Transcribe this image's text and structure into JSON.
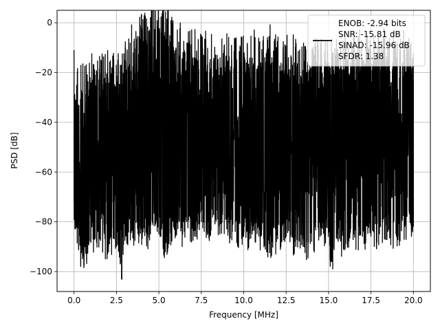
{
  "chart_data": {
    "type": "line",
    "title": "",
    "xlabel": "Frequency [MHz]",
    "ylabel": "PSD [dB]",
    "xlim": [
      -1.0,
      21.0
    ],
    "ylim": [
      -108,
      5
    ],
    "xticks": [
      0.0,
      2.5,
      5.0,
      7.5,
      10.0,
      12.5,
      15.0,
      17.5,
      20.0
    ],
    "xtick_labels": [
      "0.0",
      "2.5",
      "5.0",
      "7.5",
      "10.0",
      "12.5",
      "15.0",
      "17.5",
      "20.0"
    ],
    "yticks": [
      0,
      -20,
      -40,
      -60,
      -80,
      -100
    ],
    "ytick_labels": [
      "0",
      "−20",
      "−40",
      "−60",
      "−80",
      "−100"
    ],
    "grid": true,
    "legend_position": "top-right",
    "legend_entries": [
      "ENOB: -2.94 bits",
      "SNR: -15.81 dB",
      "SINAD: -15.96 dB",
      "SFDR: 1.38"
    ],
    "series_color": "#000000",
    "envelope_notes": "Dense noise-like PSD from 0 to 20 MHz; lower envelope mostly -95 to -75 dB, upper envelope -35 to -15 dB with peaks near 0 dB around 5 MHz",
    "x": [
      0.0,
      0.05,
      0.5,
      1.0,
      1.5,
      2.0,
      2.5,
      2.8,
      3.0,
      3.5,
      4.0,
      4.5,
      4.9,
      5.0,
      5.5,
      6.0,
      6.5,
      7.0,
      7.5,
      8.0,
      8.5,
      9.0,
      9.5,
      10.0,
      10.5,
      11.0,
      11.5,
      12.0,
      12.5,
      13.0,
      13.5,
      14.0,
      14.5,
      15.0,
      15.1,
      15.5,
      16.0,
      16.5,
      17.0,
      17.5,
      18.0,
      18.5,
      19.0,
      19.5,
      20.0
    ],
    "y_upper": [
      -11,
      -31,
      -28,
      -24,
      -25,
      -22,
      -24,
      -25,
      -15,
      -12,
      -8,
      -4,
      1,
      -3,
      -6,
      -10,
      -11,
      -14,
      -14,
      -16,
      -18,
      -16,
      -18,
      -16,
      -14,
      -16,
      -12,
      -15,
      -17,
      -16,
      -19,
      -18,
      -17,
      -16,
      -18,
      -18,
      -17,
      -15,
      -14,
      -16,
      -12,
      -15,
      -14,
      -13,
      -22
    ],
    "y_lower": [
      -72,
      -83,
      -95,
      -88,
      -87,
      -90,
      -90,
      -103,
      -85,
      -87,
      -86,
      -85,
      -84,
      -85,
      -91,
      -85,
      -84,
      -82,
      -80,
      -82,
      -81,
      -83,
      -84,
      -86,
      -85,
      -86,
      -89,
      -87,
      -86,
      -88,
      -90,
      -88,
      -86,
      -84,
      -98,
      -87,
      -89,
      -85,
      -86,
      -85,
      -85,
      -84,
      -86,
      -82,
      -82
    ]
  }
}
